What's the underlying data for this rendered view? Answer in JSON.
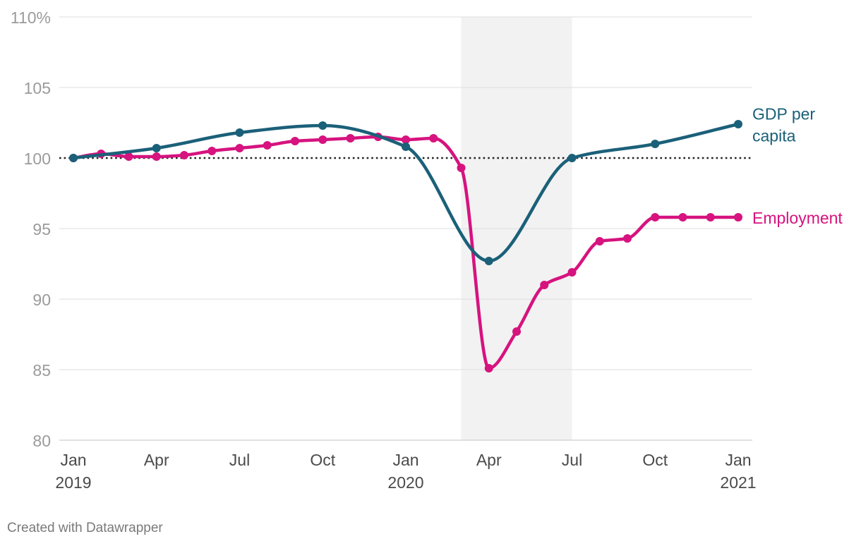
{
  "chart_data": {
    "type": "line",
    "title": "",
    "xlabel": "",
    "ylabel": "",
    "ylim": [
      80,
      110
    ],
    "xlim": [
      "2019-01",
      "2021-01"
    ],
    "grid": true,
    "baseline": 100,
    "shaded_period": [
      "2020-03",
      "2020-07"
    ],
    "y_ticks": [
      {
        "value": 80,
        "label": "80"
      },
      {
        "value": 85,
        "label": "85"
      },
      {
        "value": 90,
        "label": "90"
      },
      {
        "value": 95,
        "label": "95"
      },
      {
        "value": 100,
        "label": "100"
      },
      {
        "value": 105,
        "label": "105"
      },
      {
        "value": 110,
        "label": "110%"
      }
    ],
    "x_ticks": [
      {
        "date": "2019-01",
        "label": "Jan",
        "sublabel": "2019"
      },
      {
        "date": "2019-04",
        "label": "Apr",
        "sublabel": ""
      },
      {
        "date": "2019-07",
        "label": "Jul",
        "sublabel": ""
      },
      {
        "date": "2019-10",
        "label": "Oct",
        "sublabel": ""
      },
      {
        "date": "2020-01",
        "label": "Jan",
        "sublabel": "2020"
      },
      {
        "date": "2020-04",
        "label": "Apr",
        "sublabel": ""
      },
      {
        "date": "2020-07",
        "label": "Jul",
        "sublabel": ""
      },
      {
        "date": "2020-10",
        "label": "Oct",
        "sublabel": ""
      },
      {
        "date": "2021-01",
        "label": "Jan",
        "sublabel": "2021"
      }
    ],
    "series": [
      {
        "name": "GDP per capita",
        "label_lines": [
          "GDP per",
          "capita"
        ],
        "color": "#1b6079",
        "points": [
          {
            "x": "2019-01",
            "y": 100.0
          },
          {
            "x": "2019-04",
            "y": 100.7
          },
          {
            "x": "2019-07",
            "y": 101.8
          },
          {
            "x": "2019-10",
            "y": 102.3
          },
          {
            "x": "2020-01",
            "y": 100.8
          },
          {
            "x": "2020-04",
            "y": 92.7
          },
          {
            "x": "2020-07",
            "y": 100.0
          },
          {
            "x": "2020-10",
            "y": 101.0
          },
          {
            "x": "2021-01",
            "y": 102.4
          }
        ]
      },
      {
        "name": "Employment",
        "label_lines": [
          "Employment"
        ],
        "color": "#d6137f",
        "points": [
          {
            "x": "2019-01",
            "y": 100.0
          },
          {
            "x": "2019-02",
            "y": 100.3
          },
          {
            "x": "2019-03",
            "y": 100.1
          },
          {
            "x": "2019-04",
            "y": 100.1
          },
          {
            "x": "2019-05",
            "y": 100.2
          },
          {
            "x": "2019-06",
            "y": 100.5
          },
          {
            "x": "2019-07",
            "y": 100.7
          },
          {
            "x": "2019-08",
            "y": 100.9
          },
          {
            "x": "2019-09",
            "y": 101.2
          },
          {
            "x": "2019-10",
            "y": 101.3
          },
          {
            "x": "2019-11",
            "y": 101.4
          },
          {
            "x": "2019-12",
            "y": 101.5
          },
          {
            "x": "2020-01",
            "y": 101.3
          },
          {
            "x": "2020-02",
            "y": 101.4
          },
          {
            "x": "2020-03",
            "y": 99.3
          },
          {
            "x": "2020-04",
            "y": 85.1
          },
          {
            "x": "2020-05",
            "y": 87.7
          },
          {
            "x": "2020-06",
            "y": 91.0
          },
          {
            "x": "2020-07",
            "y": 91.9
          },
          {
            "x": "2020-08",
            "y": 94.1
          },
          {
            "x": "2020-09",
            "y": 94.3
          },
          {
            "x": "2020-10",
            "y": 95.8
          },
          {
            "x": "2020-11",
            "y": 95.8
          },
          {
            "x": "2020-12",
            "y": 95.8
          },
          {
            "x": "2021-01",
            "y": 95.8
          }
        ]
      }
    ]
  },
  "footer": {
    "credit": "Created with Datawrapper"
  }
}
